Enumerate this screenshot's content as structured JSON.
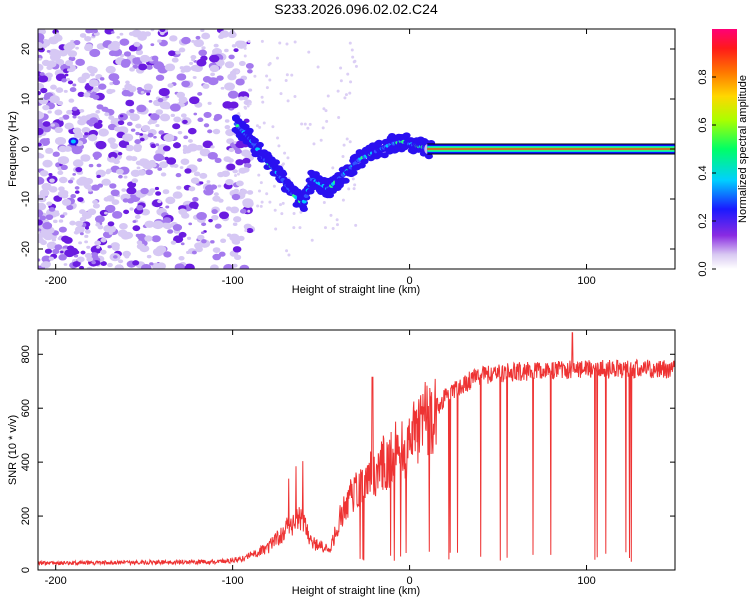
{
  "figure_title": "S233.2026.096.02.02.C24",
  "chart_data": [
    {
      "type": "heatmap",
      "name": "spectrogram",
      "xlabel": "Height of straight line (km)",
      "ylabel": "Frequency (Hz)",
      "xlim": [
        -210,
        150
      ],
      "ylim": [
        -24,
        24
      ],
      "xticks": [
        -200,
        -100,
        0,
        100
      ],
      "yticks": [
        -20,
        -10,
        0,
        10,
        20
      ],
      "ridge_points": [
        {
          "x": -98,
          "y": 5
        },
        {
          "x": -90,
          "y": 2
        },
        {
          "x": -82,
          "y": -2
        },
        {
          "x": -74,
          "y": -5
        },
        {
          "x": -66,
          "y": -9
        },
        {
          "x": -60,
          "y": -11
        },
        {
          "x": -55,
          "y": -6
        },
        {
          "x": -50,
          "y": -7
        },
        {
          "x": -46,
          "y": -8
        },
        {
          "x": -40,
          "y": -6
        },
        {
          "x": -34,
          "y": -4
        },
        {
          "x": -28,
          "y": -2
        },
        {
          "x": -22,
          "y": -1
        },
        {
          "x": -16,
          "y": 0
        },
        {
          "x": -10,
          "y": 1
        },
        {
          "x": -4,
          "y": 1.5
        },
        {
          "x": 0,
          "y": 1
        },
        {
          "x": 6,
          "y": 0.5
        },
        {
          "x": 12,
          "y": 0
        }
      ],
      "carrier_line": {
        "x_start": 10,
        "x_end": 150,
        "y": 0
      }
    },
    {
      "type": "line",
      "name": "snr",
      "xlabel": "Height of straight line (km)",
      "ylabel": "SNR (10 * v/v)",
      "xlim": [
        -210,
        150
      ],
      "ylim": [
        0,
        890
      ],
      "xticks": [
        -200,
        -100,
        0,
        100
      ],
      "yticks": [
        0,
        200,
        400,
        600,
        800
      ],
      "series": [
        {
          "name": "SNR",
          "color": "#ee3333"
        }
      ],
      "envelope": [
        {
          "x": -210,
          "y": 25
        },
        {
          "x": -110,
          "y": 30
        },
        {
          "x": -95,
          "y": 40
        },
        {
          "x": -80,
          "y": 80
        },
        {
          "x": -70,
          "y": 150
        },
        {
          "x": -62,
          "y": 200
        },
        {
          "x": -55,
          "y": 100
        },
        {
          "x": -45,
          "y": 70
        },
        {
          "x": -38,
          "y": 220
        },
        {
          "x": -30,
          "y": 300
        },
        {
          "x": -20,
          "y": 360
        },
        {
          "x": -10,
          "y": 420
        },
        {
          "x": 0,
          "y": 480
        },
        {
          "x": 10,
          "y": 560
        },
        {
          "x": 20,
          "y": 640
        },
        {
          "x": 30,
          "y": 690
        },
        {
          "x": 40,
          "y": 720
        },
        {
          "x": 60,
          "y": 735
        },
        {
          "x": 80,
          "y": 740
        },
        {
          "x": 100,
          "y": 745
        },
        {
          "x": 150,
          "y": 745
        }
      ]
    }
  ],
  "colorbar": {
    "label": "Normalized spectral amplitude",
    "ticks": [
      "0.0",
      "0.2",
      "0.4",
      "0.6",
      "0.8"
    ],
    "tick_values": [
      0.0,
      0.2,
      0.4,
      0.6,
      0.8
    ],
    "range": [
      0,
      1
    ]
  }
}
